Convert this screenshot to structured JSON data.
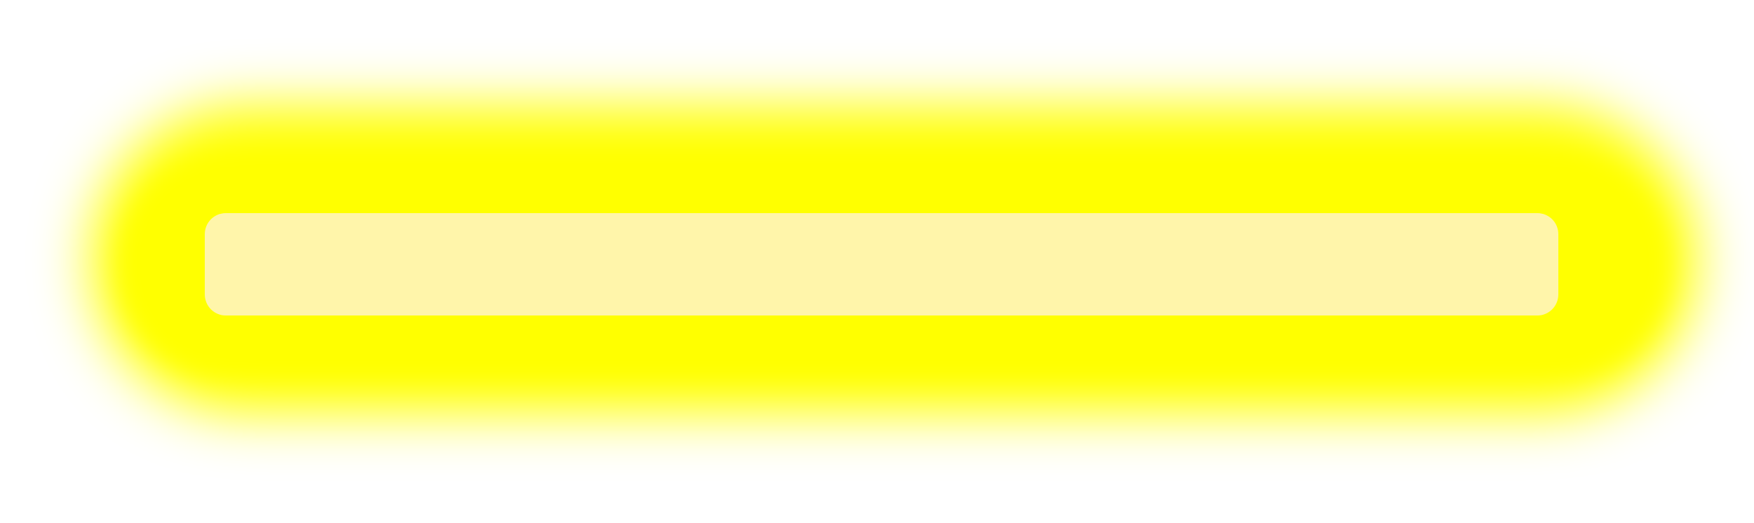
{
  "colors": {
    "background": "#ffffff",
    "glow": "#ffff00",
    "bar": "#fff5aa"
  }
}
